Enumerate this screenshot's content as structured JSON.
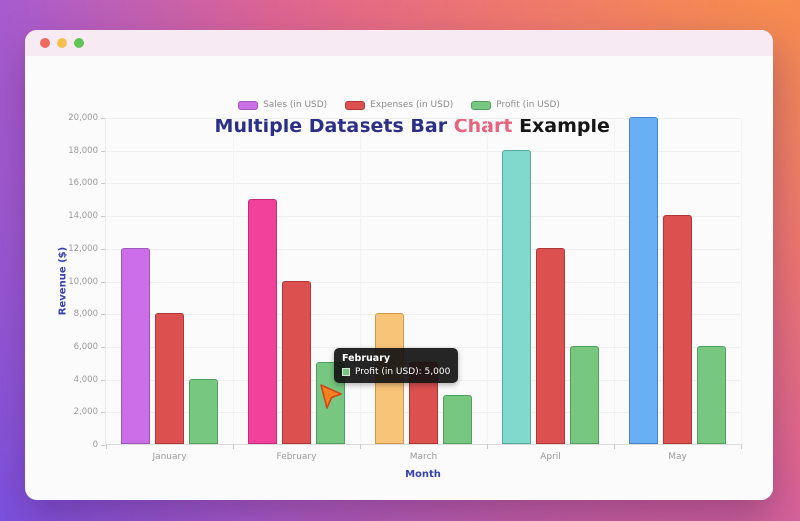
{
  "window": {
    "traffic_lights": [
      {
        "name": "close",
        "color": "#ee6a5f"
      },
      {
        "name": "minimize",
        "color": "#f5c04f"
      },
      {
        "name": "zoom",
        "color": "#62c454"
      }
    ]
  },
  "title": {
    "segments": [
      {
        "text": "Multiple Datasets Bar ",
        "color": "#2b2f85"
      },
      {
        "text": "Chart",
        "color": "#e8637d"
      },
      {
        "text": " Example",
        "color": "#161616"
      }
    ]
  },
  "chart_data": {
    "type": "bar",
    "title": "Multiple Datasets Bar Chart Example",
    "categories": [
      "January",
      "February",
      "March",
      "April",
      "May"
    ],
    "x_axis_title": "Month",
    "y_axis_title": "Revenue ($)",
    "ylim": [
      0,
      20000
    ],
    "ytick_step": 2000,
    "grid": true,
    "legend_position": "top",
    "series": [
      {
        "name": "Sales (in USD)",
        "values": [
          12000,
          15000,
          8000,
          18000,
          20000
        ],
        "fill_colors": [
          "#cb6ee8",
          "#f2419b",
          "#f8c478",
          "#80d9cc",
          "#69aff4"
        ],
        "border_colors": [
          "#a155bf",
          "#c22e7b",
          "#d1994e",
          "#54ab9e",
          "#4583cb"
        ],
        "legend_fill": "#cb6ee8",
        "legend_border": "#a155bf"
      },
      {
        "name": "Expenses (in USD)",
        "values": [
          8000,
          10000,
          5000,
          12000,
          14000
        ],
        "fill": "#dc5050",
        "border": "#b23535"
      },
      {
        "name": "Profit (in USD)",
        "values": [
          4000,
          5000,
          3000,
          6000,
          6000
        ],
        "fill": "#77c780",
        "border": "#4f9f5f"
      }
    ]
  },
  "tooltip": {
    "title": "February",
    "label": "Profit (in USD): 5,000",
    "swatch_fill": "#77c780",
    "swatch_border": "#cfe9d3"
  },
  "cursor": {
    "fill": "#f5821f",
    "outline": "#d1451d"
  }
}
